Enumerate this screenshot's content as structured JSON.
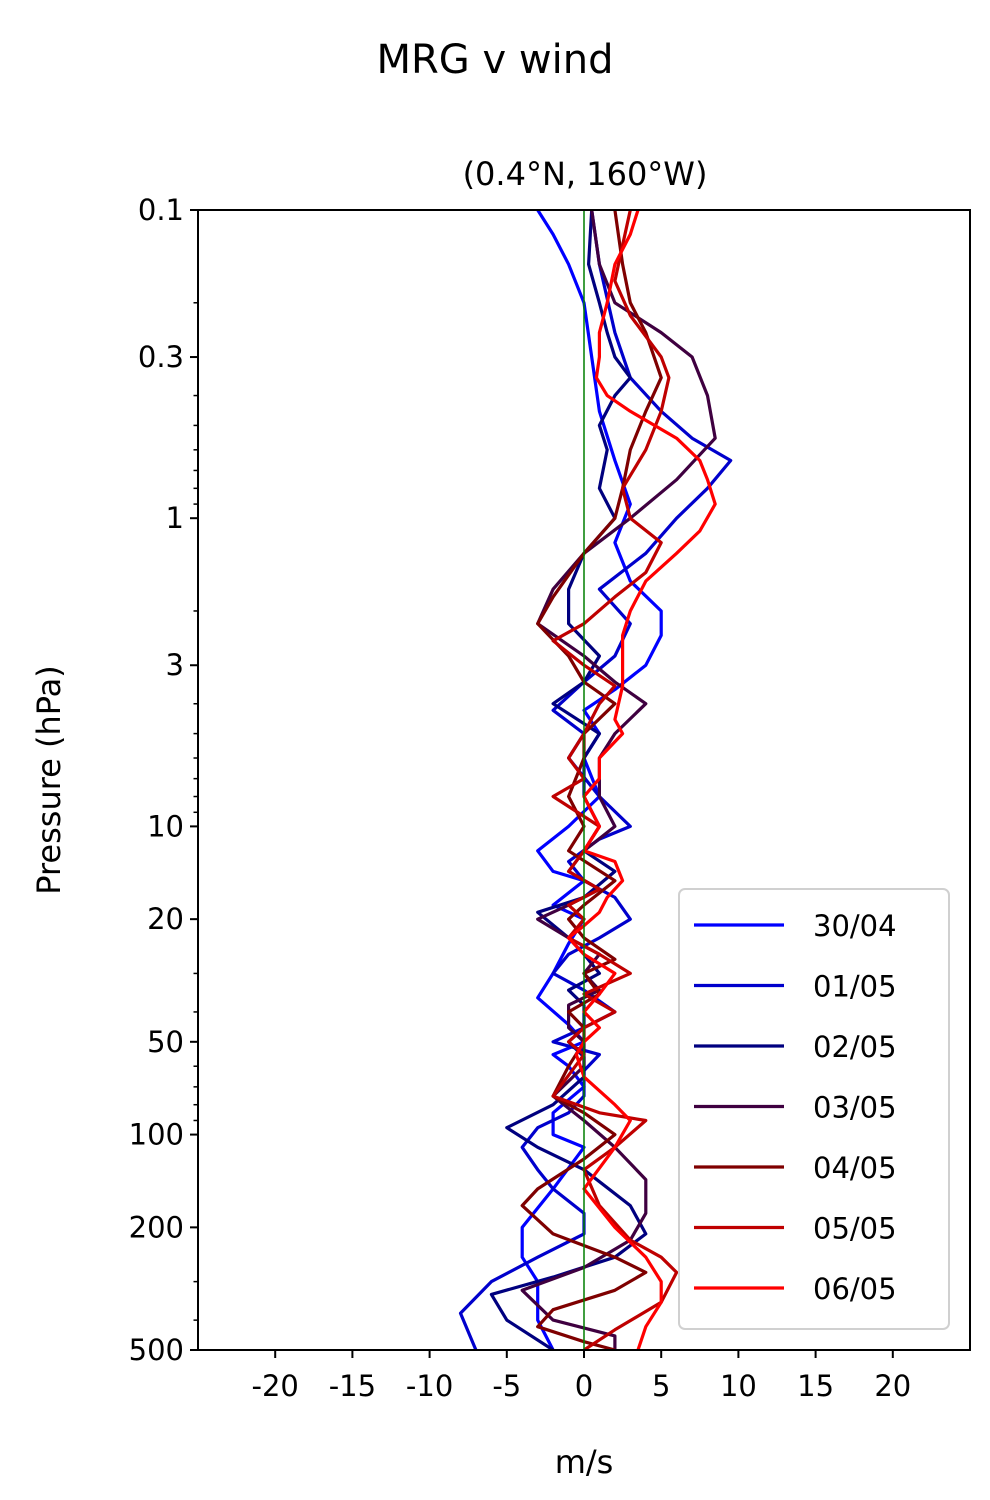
{
  "figure": {
    "suptitle": "MRG v wind"
  },
  "chart_data": {
    "type": "line",
    "title": "(0.4°N, 160°W)",
    "xlabel": "m/s",
    "ylabel": "Pressure (hPa)",
    "xlim": [
      -25,
      25
    ],
    "ylim": [
      500,
      0.1
    ],
    "yscale": "log",
    "x_ticks": [
      -20,
      -15,
      -10,
      -5,
      0,
      5,
      10,
      15,
      20
    ],
    "x_tick_labels": [
      "-20",
      "-15",
      "-10",
      "-5",
      "0",
      "5",
      "10",
      "15",
      "20"
    ],
    "y_ticks": [
      0.1,
      0.3,
      1,
      3,
      10,
      20,
      50,
      100,
      200,
      500
    ],
    "y_tick_labels": [
      "0.1",
      "0.3",
      "1",
      "3",
      "10",
      "20",
      "50",
      "100",
      "200",
      "500"
    ],
    "zero_line_color": "#007f00",
    "legend_position": "lower right",
    "series": [
      {
        "name": "30/04",
        "color": "#0000ff",
        "points": [
          [
            -3,
            0.1
          ],
          [
            -2,
            0.12
          ],
          [
            -1,
            0.15
          ],
          [
            0,
            0.2
          ],
          [
            0.5,
            0.3
          ],
          [
            1,
            0.45
          ],
          [
            2,
            0.65
          ],
          [
            3,
            0.9
          ],
          [
            2,
            1.2
          ],
          [
            3,
            1.6
          ],
          [
            5,
            2.0
          ],
          [
            5,
            2.4
          ],
          [
            4,
            3.0
          ],
          [
            2,
            3.6
          ],
          [
            0,
            4.2
          ],
          [
            1,
            5
          ],
          [
            0,
            6
          ],
          [
            1,
            8
          ],
          [
            -1,
            10
          ],
          [
            -3,
            12
          ],
          [
            -2,
            14
          ],
          [
            0,
            15
          ],
          [
            -2,
            18
          ],
          [
            0,
            20
          ],
          [
            -1,
            24
          ],
          [
            -2,
            30
          ],
          [
            -3,
            36
          ],
          [
            -1,
            44
          ],
          [
            0,
            50
          ],
          [
            -2,
            55
          ],
          [
            -1,
            60
          ],
          [
            0,
            70
          ],
          [
            -2,
            85
          ],
          [
            -2,
            100
          ],
          [
            0,
            110
          ],
          [
            -2,
            150
          ],
          [
            -4,
            200
          ],
          [
            -4,
            250
          ],
          [
            -3,
            300
          ],
          [
            -3,
            400
          ],
          [
            -2,
            500
          ]
        ]
      },
      {
        "name": "01/05",
        "color": "#0000cc",
        "points": [
          [
            0.5,
            0.1
          ],
          [
            1,
            0.15
          ],
          [
            2,
            0.25
          ],
          [
            3,
            0.35
          ],
          [
            5,
            0.45
          ],
          [
            7,
            0.55
          ],
          [
            9.5,
            0.65
          ],
          [
            8,
            0.8
          ],
          [
            6,
            1.0
          ],
          [
            4,
            1.3
          ],
          [
            1,
            1.7
          ],
          [
            3,
            2.2
          ],
          [
            2,
            2.8
          ],
          [
            0,
            3.4
          ],
          [
            -2,
            4.2
          ],
          [
            0,
            5
          ],
          [
            -1,
            6
          ],
          [
            1,
            8
          ],
          [
            3,
            10
          ],
          [
            1,
            11
          ],
          [
            -1,
            13
          ],
          [
            0,
            15
          ],
          [
            2,
            17
          ],
          [
            3,
            20
          ],
          [
            1,
            23
          ],
          [
            -1,
            26
          ],
          [
            -2,
            30
          ],
          [
            0,
            34
          ],
          [
            2,
            40
          ],
          [
            0,
            45
          ],
          [
            -2,
            50
          ],
          [
            1,
            55
          ],
          [
            0,
            62
          ],
          [
            0,
            75
          ],
          [
            -1,
            85
          ],
          [
            -3,
            95
          ],
          [
            -4,
            110
          ],
          [
            -3,
            130
          ],
          [
            -2,
            150
          ],
          [
            0,
            180
          ],
          [
            0,
            210
          ],
          [
            -3,
            250
          ],
          [
            -6,
            300
          ],
          [
            -8,
            380
          ],
          [
            -7,
            500
          ]
        ]
      },
      {
        "name": "02/05",
        "color": "#00007f",
        "points": [
          [
            0.5,
            0.1
          ],
          [
            0.3,
            0.15
          ],
          [
            1,
            0.2
          ],
          [
            1.5,
            0.25
          ],
          [
            2,
            0.3
          ],
          [
            3,
            0.35
          ],
          [
            2,
            0.4
          ],
          [
            1,
            0.5
          ],
          [
            1.5,
            0.6
          ],
          [
            1,
            0.8
          ],
          [
            2,
            1.0
          ],
          [
            0,
            1.3
          ],
          [
            -1,
            1.7
          ],
          [
            -1,
            2.2
          ],
          [
            1,
            2.8
          ],
          [
            0,
            3.4
          ],
          [
            -2,
            4
          ],
          [
            1,
            5
          ],
          [
            0,
            6
          ],
          [
            0,
            8
          ],
          [
            1,
            10
          ],
          [
            0,
            12
          ],
          [
            2,
            14
          ],
          [
            0,
            17
          ],
          [
            -3,
            19
          ],
          [
            -1,
            23
          ],
          [
            0,
            26
          ],
          [
            1,
            30
          ],
          [
            -1,
            34
          ],
          [
            0,
            38
          ],
          [
            0,
            45
          ],
          [
            -1,
            50
          ],
          [
            0,
            56
          ],
          [
            0,
            65
          ],
          [
            -2,
            80
          ],
          [
            -5,
            95
          ],
          [
            -3,
            110
          ],
          [
            0,
            130
          ],
          [
            3,
            170
          ],
          [
            4,
            210
          ],
          [
            2,
            250
          ],
          [
            -2,
            290
          ],
          [
            -6,
            330
          ],
          [
            -5,
            400
          ],
          [
            -2,
            500
          ]
        ]
      },
      {
        "name": "03/05",
        "color": "#3f0040",
        "points": [
          [
            0.5,
            0.1
          ],
          [
            1,
            0.15
          ],
          [
            2,
            0.2
          ],
          [
            5,
            0.25
          ],
          [
            7,
            0.3
          ],
          [
            8,
            0.4
          ],
          [
            8.5,
            0.55
          ],
          [
            6,
            0.75
          ],
          [
            3,
            1.0
          ],
          [
            0,
            1.3
          ],
          [
            -2,
            1.7
          ],
          [
            -3,
            2.2
          ],
          [
            0,
            2.8
          ],
          [
            2,
            3.4
          ],
          [
            4,
            4
          ],
          [
            2,
            5
          ],
          [
            1,
            6
          ],
          [
            1,
            8
          ],
          [
            2,
            10
          ],
          [
            0,
            12
          ],
          [
            -1,
            14
          ],
          [
            1,
            16
          ],
          [
            -1,
            18
          ],
          [
            -3,
            20
          ],
          [
            -1,
            23
          ],
          [
            1,
            26
          ],
          [
            0,
            30
          ],
          [
            1,
            34
          ],
          [
            -1,
            38
          ],
          [
            -1,
            45
          ],
          [
            0,
            50
          ],
          [
            0,
            60
          ],
          [
            -2,
            75
          ],
          [
            0,
            90
          ],
          [
            2,
            110
          ],
          [
            4,
            140
          ],
          [
            4,
            180
          ],
          [
            3,
            220
          ],
          [
            0,
            270
          ],
          [
            -4,
            320
          ],
          [
            -2,
            400
          ],
          [
            2,
            450
          ],
          [
            2,
            500
          ]
        ]
      },
      {
        "name": "04/05",
        "color": "#7f0000",
        "points": [
          [
            2,
            0.1
          ],
          [
            2.5,
            0.15
          ],
          [
            3,
            0.2
          ],
          [
            4,
            0.25
          ],
          [
            5,
            0.35
          ],
          [
            4,
            0.45
          ],
          [
            3,
            0.6
          ],
          [
            2.5,
            0.8
          ],
          [
            2,
            1.0
          ],
          [
            0,
            1.3
          ],
          [
            -2,
            1.8
          ],
          [
            -3,
            2.2
          ],
          [
            -1,
            2.8
          ],
          [
            0,
            3.4
          ],
          [
            2,
            4
          ],
          [
            0,
            5
          ],
          [
            0,
            6
          ],
          [
            -1,
            8
          ],
          [
            0,
            10
          ],
          [
            -1,
            12
          ],
          [
            2,
            15
          ],
          [
            0,
            18
          ],
          [
            -1,
            20
          ],
          [
            0,
            23
          ],
          [
            2,
            27
          ],
          [
            0,
            30
          ],
          [
            1,
            35
          ],
          [
            -1,
            40
          ],
          [
            0,
            45
          ],
          [
            0,
            50
          ],
          [
            -1,
            60
          ],
          [
            -2,
            75
          ],
          [
            0,
            85
          ],
          [
            2,
            100
          ],
          [
            0,
            120
          ],
          [
            -3,
            150
          ],
          [
            -4,
            170
          ],
          [
            -2,
            210
          ],
          [
            2,
            250
          ],
          [
            4,
            280
          ],
          [
            2,
            320
          ],
          [
            -2,
            370
          ],
          [
            -3,
            420
          ],
          [
            0,
            470
          ],
          [
            2,
            500
          ]
        ]
      },
      {
        "name": "05/05",
        "color": "#bf0000",
        "points": [
          [
            3,
            0.1
          ],
          [
            2.5,
            0.13
          ],
          [
            2,
            0.17
          ],
          [
            3,
            0.22
          ],
          [
            5,
            0.3
          ],
          [
            5.5,
            0.35
          ],
          [
            5,
            0.45
          ],
          [
            4,
            0.6
          ],
          [
            2.5,
            0.8
          ],
          [
            3,
            1.0
          ],
          [
            5,
            1.2
          ],
          [
            4,
            1.5
          ],
          [
            2,
            1.8
          ],
          [
            0,
            2.2
          ],
          [
            -2,
            2.5
          ],
          [
            0,
            3
          ],
          [
            2,
            3.5
          ],
          [
            1,
            4
          ],
          [
            0,
            5
          ],
          [
            -1,
            6
          ],
          [
            0,
            7
          ],
          [
            -2,
            8
          ],
          [
            1,
            10
          ],
          [
            0,
            12
          ],
          [
            -1,
            14
          ],
          [
            1,
            16
          ],
          [
            -1,
            18
          ],
          [
            0,
            20
          ],
          [
            -1,
            23
          ],
          [
            1,
            26
          ],
          [
            3,
            30
          ],
          [
            0,
            35
          ],
          [
            2,
            40
          ],
          [
            0,
            45
          ],
          [
            -1,
            50
          ],
          [
            0,
            55
          ],
          [
            -2,
            75
          ],
          [
            1,
            85
          ],
          [
            4,
            90
          ],
          [
            2,
            110
          ],
          [
            0,
            130
          ],
          [
            1,
            170
          ],
          [
            3,
            220
          ],
          [
            5,
            250
          ],
          [
            6,
            280
          ],
          [
            5,
            350
          ],
          [
            2,
            430
          ],
          [
            0,
            500
          ]
        ]
      },
      {
        "name": "06/05",
        "color": "#ff0000",
        "points": [
          [
            3.5,
            0.1
          ],
          [
            3,
            0.12
          ],
          [
            2,
            0.15
          ],
          [
            1.5,
            0.2
          ],
          [
            1,
            0.25
          ],
          [
            1,
            0.3
          ],
          [
            0.8,
            0.35
          ],
          [
            1.5,
            0.4
          ],
          [
            3,
            0.45
          ],
          [
            6,
            0.55
          ],
          [
            7.5,
            0.65
          ],
          [
            8,
            0.75
          ],
          [
            8.5,
            0.9
          ],
          [
            7.5,
            1.1
          ],
          [
            6,
            1.3
          ],
          [
            4,
            1.6
          ],
          [
            3,
            2.0
          ],
          [
            2.5,
            2.4
          ],
          [
            2.5,
            3.0
          ],
          [
            2.5,
            3.5
          ],
          [
            2,
            4.5
          ],
          [
            2.5,
            5
          ],
          [
            1,
            6
          ],
          [
            1,
            7
          ],
          [
            0,
            8
          ],
          [
            1,
            10
          ],
          [
            0,
            12
          ],
          [
            2,
            13
          ],
          [
            2.5,
            15
          ],
          [
            1.5,
            17
          ],
          [
            1,
            19
          ],
          [
            0,
            21
          ],
          [
            -1,
            23
          ],
          [
            0,
            26
          ],
          [
            2,
            30
          ],
          [
            1,
            35
          ],
          [
            0,
            40
          ],
          [
            1,
            45
          ],
          [
            0,
            50
          ],
          [
            -0.5,
            55
          ],
          [
            0,
            65
          ],
          [
            2,
            80
          ],
          [
            3,
            90
          ],
          [
            2,
            110
          ],
          [
            0,
            150
          ],
          [
            2,
            200
          ],
          [
            4,
            250
          ],
          [
            5,
            300
          ],
          [
            5,
            350
          ],
          [
            4,
            420
          ],
          [
            3.5,
            500
          ]
        ]
      }
    ]
  }
}
